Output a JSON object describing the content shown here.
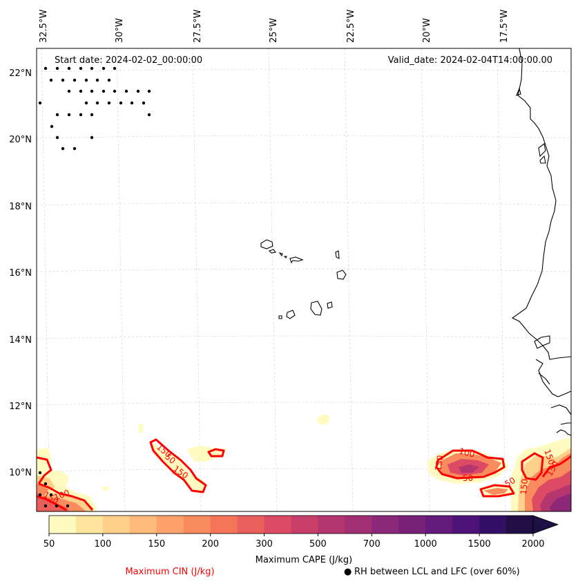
{
  "header": {
    "start_date": "Start date: 2024-02-02_00:00:00",
    "valid_date": "Valid_date: 2024-02-04T14:00:00.00"
  },
  "axes": {
    "lon_labels": [
      "32.5°W",
      "30°W",
      "27.5°W",
      "25°W",
      "22.5°W",
      "20°W",
      "17.5°W"
    ],
    "lat_labels": [
      "22°N",
      "20°N",
      "18°N",
      "16°N",
      "14°N",
      "12°N",
      "10°N"
    ]
  },
  "map": {
    "cin_contour_labels": [
      "150",
      "50",
      "150",
      "100",
      "150",
      "50",
      "150",
      "50",
      "150",
      "150",
      "150",
      "100"
    ],
    "colors": {
      "cin_contour": "#ff0000",
      "coastline": "#000000",
      "gridline": "#cccccc"
    }
  },
  "colorbar": {
    "tick_labels": [
      "50",
      "100",
      "150",
      "200",
      "300",
      "500",
      "700",
      "1000",
      "1500",
      "2000"
    ],
    "colors": [
      "#fffac0",
      "#fee59e",
      "#fed08a",
      "#feba78",
      "#fca26a",
      "#fa8b5f",
      "#f57559",
      "#ea5e5c",
      "#dc4b63",
      "#c83e6a",
      "#b5366f",
      "#a02f74",
      "#8c2877",
      "#782179",
      "#641a7a",
      "#4c127a",
      "#331066",
      "#200e45",
      "#1d1045"
    ],
    "label": "Maximum CAPE (J/kg)"
  },
  "legend": {
    "cin_label": "Maximum CIN (J/kg)",
    "rh_label": "RH between LCL and LFC (over 60%)",
    "rh_marker": "●"
  }
}
